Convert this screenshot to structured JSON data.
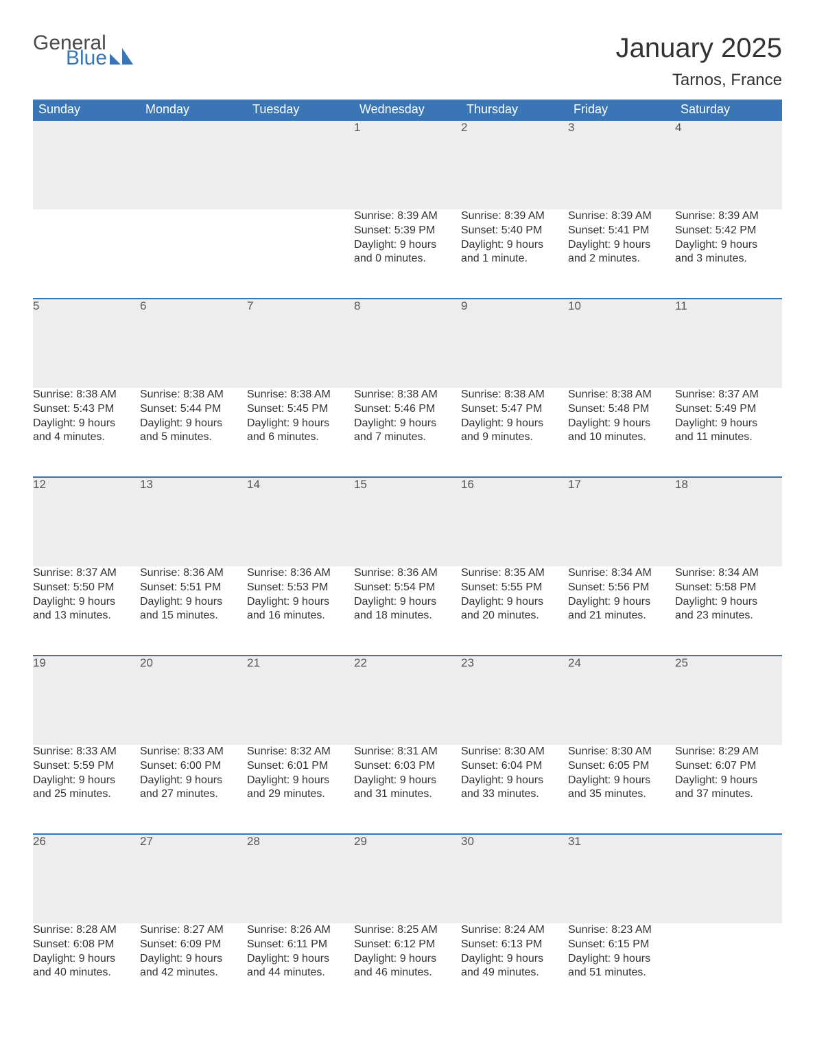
{
  "logo": {
    "text1": "General",
    "text2": "Blue",
    "icon_color": "#3a76b5",
    "text1_color": "#4a4a4a"
  },
  "title": {
    "month": "January 2025",
    "location": "Tarnos, France"
  },
  "colors": {
    "header_bg": "#3a76b5",
    "header_text": "#ffffff",
    "daynum_bg": "#ededed",
    "row_border": "#3a76b5",
    "body_text": "#333333",
    "daynum_text": "#555555",
    "page_bg": "#ffffff"
  },
  "calendar": {
    "columns": [
      "Sunday",
      "Monday",
      "Tuesday",
      "Wednesday",
      "Thursday",
      "Friday",
      "Saturday"
    ],
    "weeks": [
      [
        null,
        null,
        null,
        {
          "day": "1",
          "sunrise": "Sunrise: 8:39 AM",
          "sunset": "Sunset: 5:39 PM",
          "daylight1": "Daylight: 9 hours",
          "daylight2": "and 0 minutes."
        },
        {
          "day": "2",
          "sunrise": "Sunrise: 8:39 AM",
          "sunset": "Sunset: 5:40 PM",
          "daylight1": "Daylight: 9 hours",
          "daylight2": "and 1 minute."
        },
        {
          "day": "3",
          "sunrise": "Sunrise: 8:39 AM",
          "sunset": "Sunset: 5:41 PM",
          "daylight1": "Daylight: 9 hours",
          "daylight2": "and 2 minutes."
        },
        {
          "day": "4",
          "sunrise": "Sunrise: 8:39 AM",
          "sunset": "Sunset: 5:42 PM",
          "daylight1": "Daylight: 9 hours",
          "daylight2": "and 3 minutes."
        }
      ],
      [
        {
          "day": "5",
          "sunrise": "Sunrise: 8:38 AM",
          "sunset": "Sunset: 5:43 PM",
          "daylight1": "Daylight: 9 hours",
          "daylight2": "and 4 minutes."
        },
        {
          "day": "6",
          "sunrise": "Sunrise: 8:38 AM",
          "sunset": "Sunset: 5:44 PM",
          "daylight1": "Daylight: 9 hours",
          "daylight2": "and 5 minutes."
        },
        {
          "day": "7",
          "sunrise": "Sunrise: 8:38 AM",
          "sunset": "Sunset: 5:45 PM",
          "daylight1": "Daylight: 9 hours",
          "daylight2": "and 6 minutes."
        },
        {
          "day": "8",
          "sunrise": "Sunrise: 8:38 AM",
          "sunset": "Sunset: 5:46 PM",
          "daylight1": "Daylight: 9 hours",
          "daylight2": "and 7 minutes."
        },
        {
          "day": "9",
          "sunrise": "Sunrise: 8:38 AM",
          "sunset": "Sunset: 5:47 PM",
          "daylight1": "Daylight: 9 hours",
          "daylight2": "and 9 minutes."
        },
        {
          "day": "10",
          "sunrise": "Sunrise: 8:38 AM",
          "sunset": "Sunset: 5:48 PM",
          "daylight1": "Daylight: 9 hours",
          "daylight2": "and 10 minutes."
        },
        {
          "day": "11",
          "sunrise": "Sunrise: 8:37 AM",
          "sunset": "Sunset: 5:49 PM",
          "daylight1": "Daylight: 9 hours",
          "daylight2": "and 11 minutes."
        }
      ],
      [
        {
          "day": "12",
          "sunrise": "Sunrise: 8:37 AM",
          "sunset": "Sunset: 5:50 PM",
          "daylight1": "Daylight: 9 hours",
          "daylight2": "and 13 minutes."
        },
        {
          "day": "13",
          "sunrise": "Sunrise: 8:36 AM",
          "sunset": "Sunset: 5:51 PM",
          "daylight1": "Daylight: 9 hours",
          "daylight2": "and 15 minutes."
        },
        {
          "day": "14",
          "sunrise": "Sunrise: 8:36 AM",
          "sunset": "Sunset: 5:53 PM",
          "daylight1": "Daylight: 9 hours",
          "daylight2": "and 16 minutes."
        },
        {
          "day": "15",
          "sunrise": "Sunrise: 8:36 AM",
          "sunset": "Sunset: 5:54 PM",
          "daylight1": "Daylight: 9 hours",
          "daylight2": "and 18 minutes."
        },
        {
          "day": "16",
          "sunrise": "Sunrise: 8:35 AM",
          "sunset": "Sunset: 5:55 PM",
          "daylight1": "Daylight: 9 hours",
          "daylight2": "and 20 minutes."
        },
        {
          "day": "17",
          "sunrise": "Sunrise: 8:34 AM",
          "sunset": "Sunset: 5:56 PM",
          "daylight1": "Daylight: 9 hours",
          "daylight2": "and 21 minutes."
        },
        {
          "day": "18",
          "sunrise": "Sunrise: 8:34 AM",
          "sunset": "Sunset: 5:58 PM",
          "daylight1": "Daylight: 9 hours",
          "daylight2": "and 23 minutes."
        }
      ],
      [
        {
          "day": "19",
          "sunrise": "Sunrise: 8:33 AM",
          "sunset": "Sunset: 5:59 PM",
          "daylight1": "Daylight: 9 hours",
          "daylight2": "and 25 minutes."
        },
        {
          "day": "20",
          "sunrise": "Sunrise: 8:33 AM",
          "sunset": "Sunset: 6:00 PM",
          "daylight1": "Daylight: 9 hours",
          "daylight2": "and 27 minutes."
        },
        {
          "day": "21",
          "sunrise": "Sunrise: 8:32 AM",
          "sunset": "Sunset: 6:01 PM",
          "daylight1": "Daylight: 9 hours",
          "daylight2": "and 29 minutes."
        },
        {
          "day": "22",
          "sunrise": "Sunrise: 8:31 AM",
          "sunset": "Sunset: 6:03 PM",
          "daylight1": "Daylight: 9 hours",
          "daylight2": "and 31 minutes."
        },
        {
          "day": "23",
          "sunrise": "Sunrise: 8:30 AM",
          "sunset": "Sunset: 6:04 PM",
          "daylight1": "Daylight: 9 hours",
          "daylight2": "and 33 minutes."
        },
        {
          "day": "24",
          "sunrise": "Sunrise: 8:30 AM",
          "sunset": "Sunset: 6:05 PM",
          "daylight1": "Daylight: 9 hours",
          "daylight2": "and 35 minutes."
        },
        {
          "day": "25",
          "sunrise": "Sunrise: 8:29 AM",
          "sunset": "Sunset: 6:07 PM",
          "daylight1": "Daylight: 9 hours",
          "daylight2": "and 37 minutes."
        }
      ],
      [
        {
          "day": "26",
          "sunrise": "Sunrise: 8:28 AM",
          "sunset": "Sunset: 6:08 PM",
          "daylight1": "Daylight: 9 hours",
          "daylight2": "and 40 minutes."
        },
        {
          "day": "27",
          "sunrise": "Sunrise: 8:27 AM",
          "sunset": "Sunset: 6:09 PM",
          "daylight1": "Daylight: 9 hours",
          "daylight2": "and 42 minutes."
        },
        {
          "day": "28",
          "sunrise": "Sunrise: 8:26 AM",
          "sunset": "Sunset: 6:11 PM",
          "daylight1": "Daylight: 9 hours",
          "daylight2": "and 44 minutes."
        },
        {
          "day": "29",
          "sunrise": "Sunrise: 8:25 AM",
          "sunset": "Sunset: 6:12 PM",
          "daylight1": "Daylight: 9 hours",
          "daylight2": "and 46 minutes."
        },
        {
          "day": "30",
          "sunrise": "Sunrise: 8:24 AM",
          "sunset": "Sunset: 6:13 PM",
          "daylight1": "Daylight: 9 hours",
          "daylight2": "and 49 minutes."
        },
        {
          "day": "31",
          "sunrise": "Sunrise: 8:23 AM",
          "sunset": "Sunset: 6:15 PM",
          "daylight1": "Daylight: 9 hours",
          "daylight2": "and 51 minutes."
        },
        null
      ]
    ]
  }
}
